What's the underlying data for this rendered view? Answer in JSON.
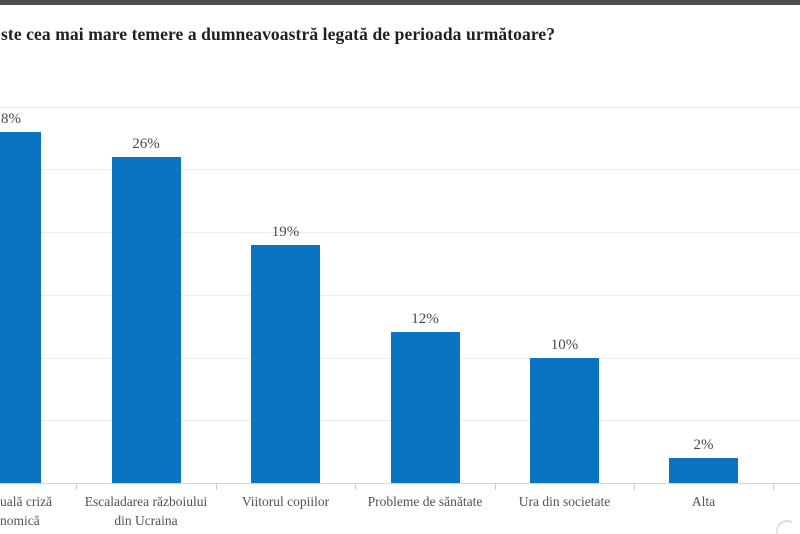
{
  "header": {
    "title_visible": "ste cea mai mare temere a dumneavoastră legată de perioada următoare?"
  },
  "chart_data": {
    "type": "bar",
    "title": "ste cea mai mare temere a dumneavoastră legată de perioada următoare?",
    "xlabel": "",
    "ylabel": "",
    "ylim": [
      0,
      30
    ],
    "gridline_step_percent": 5,
    "grid": "horizontal",
    "legend": "none",
    "bar_color": "#0b74c2",
    "bars": [
      {
        "category_lines": [
          "uală criză",
          "nomică"
        ],
        "value": 28,
        "value_label": "8%",
        "left_clipped": true
      },
      {
        "category_lines": [
          "Escaladarea războiului",
          "din Ucraina"
        ],
        "value": 26,
        "value_label": "26%"
      },
      {
        "category_lines": [
          "Viitorul copiilor"
        ],
        "value": 19,
        "value_label": "19%"
      },
      {
        "category_lines": [
          "Probleme de sănătate"
        ],
        "value": 12,
        "value_label": "12%"
      },
      {
        "category_lines": [
          "Ura din societate"
        ],
        "value": 10,
        "value_label": "10%"
      },
      {
        "category_lines": [
          "Alta"
        ],
        "value": 2,
        "value_label": "2%"
      }
    ]
  }
}
